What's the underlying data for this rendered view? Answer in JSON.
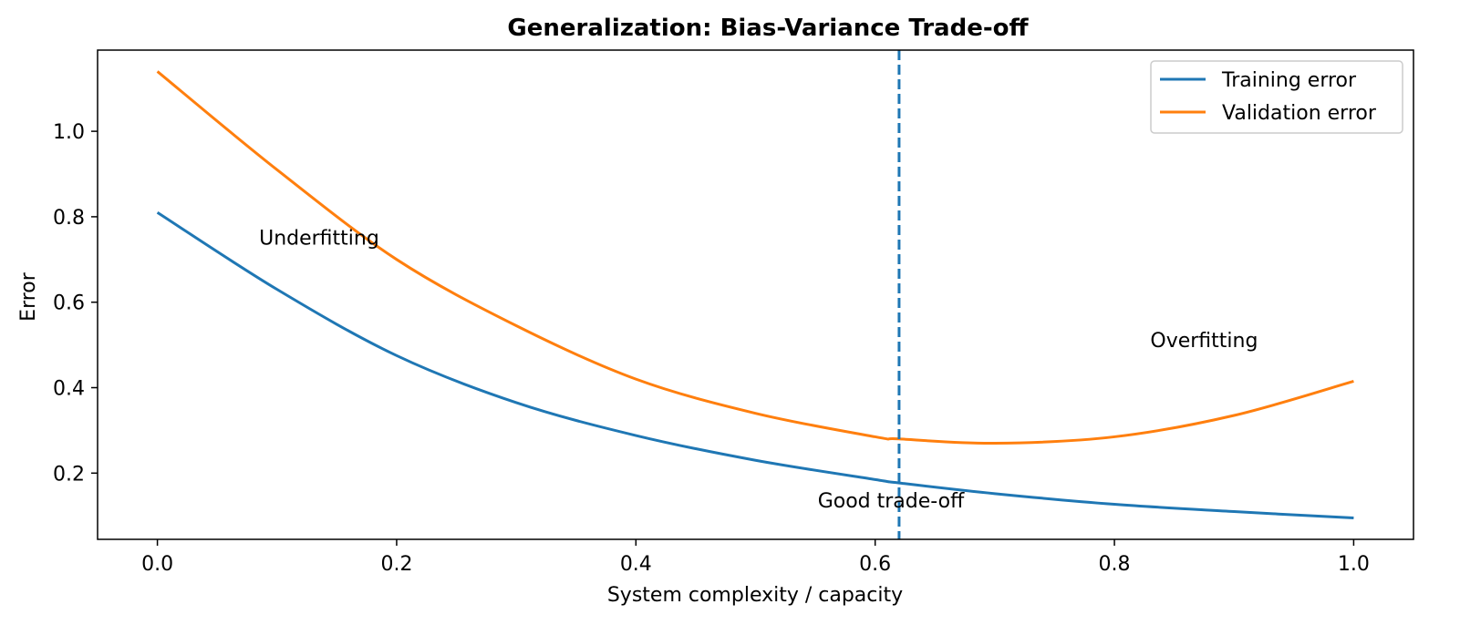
{
  "chart_data": {
    "type": "line",
    "title": "Generalization: Bias-Variance Trade-off",
    "xlabel": "System complexity / capacity",
    "ylabel": "Error",
    "xlim": [
      -0.05,
      1.05
    ],
    "ylim": [
      0.045,
      1.19
    ],
    "x_ticks": [
      0.0,
      0.2,
      0.4,
      0.6,
      0.8,
      1.0
    ],
    "x_tick_labels": [
      "0.0",
      "0.2",
      "0.4",
      "0.6",
      "0.8",
      "1.0"
    ],
    "y_ticks": [
      0.2,
      0.4,
      0.6,
      0.8,
      1.0
    ],
    "y_tick_labels": [
      "0.2",
      "0.4",
      "0.6",
      "0.8",
      "1.0"
    ],
    "grid": false,
    "legend_position": "top-right",
    "series": [
      {
        "name": "Training error",
        "color": "#1f77b4",
        "x": [
          0.0,
          0.1,
          0.2,
          0.3,
          0.4,
          0.5,
          0.6,
          0.62,
          0.7,
          0.8,
          0.9,
          1.0
        ],
        "y": [
          0.81,
          0.63,
          0.475,
          0.365,
          0.288,
          0.23,
          0.185,
          0.177,
          0.152,
          0.127,
          0.11,
          0.095
        ]
      },
      {
        "name": "Validation error",
        "color": "#ff7f0e",
        "x": [
          0.0,
          0.1,
          0.2,
          0.3,
          0.4,
          0.5,
          0.6,
          0.62,
          0.7,
          0.8,
          0.9,
          1.0
        ],
        "y": [
          1.14,
          0.91,
          0.7,
          0.545,
          0.42,
          0.34,
          0.285,
          0.28,
          0.27,
          0.285,
          0.335,
          0.415
        ]
      }
    ],
    "vline": {
      "x": 0.62,
      "color": "#1f77b4",
      "style": "dashed"
    },
    "annotations": [
      {
        "text": "Underfitting",
        "x": 0.085,
        "y": 0.735
      },
      {
        "text": "Good trade-off",
        "x": 0.552,
        "y": 0.12
      },
      {
        "text": "Overfitting",
        "x": 0.83,
        "y": 0.495
      }
    ]
  }
}
